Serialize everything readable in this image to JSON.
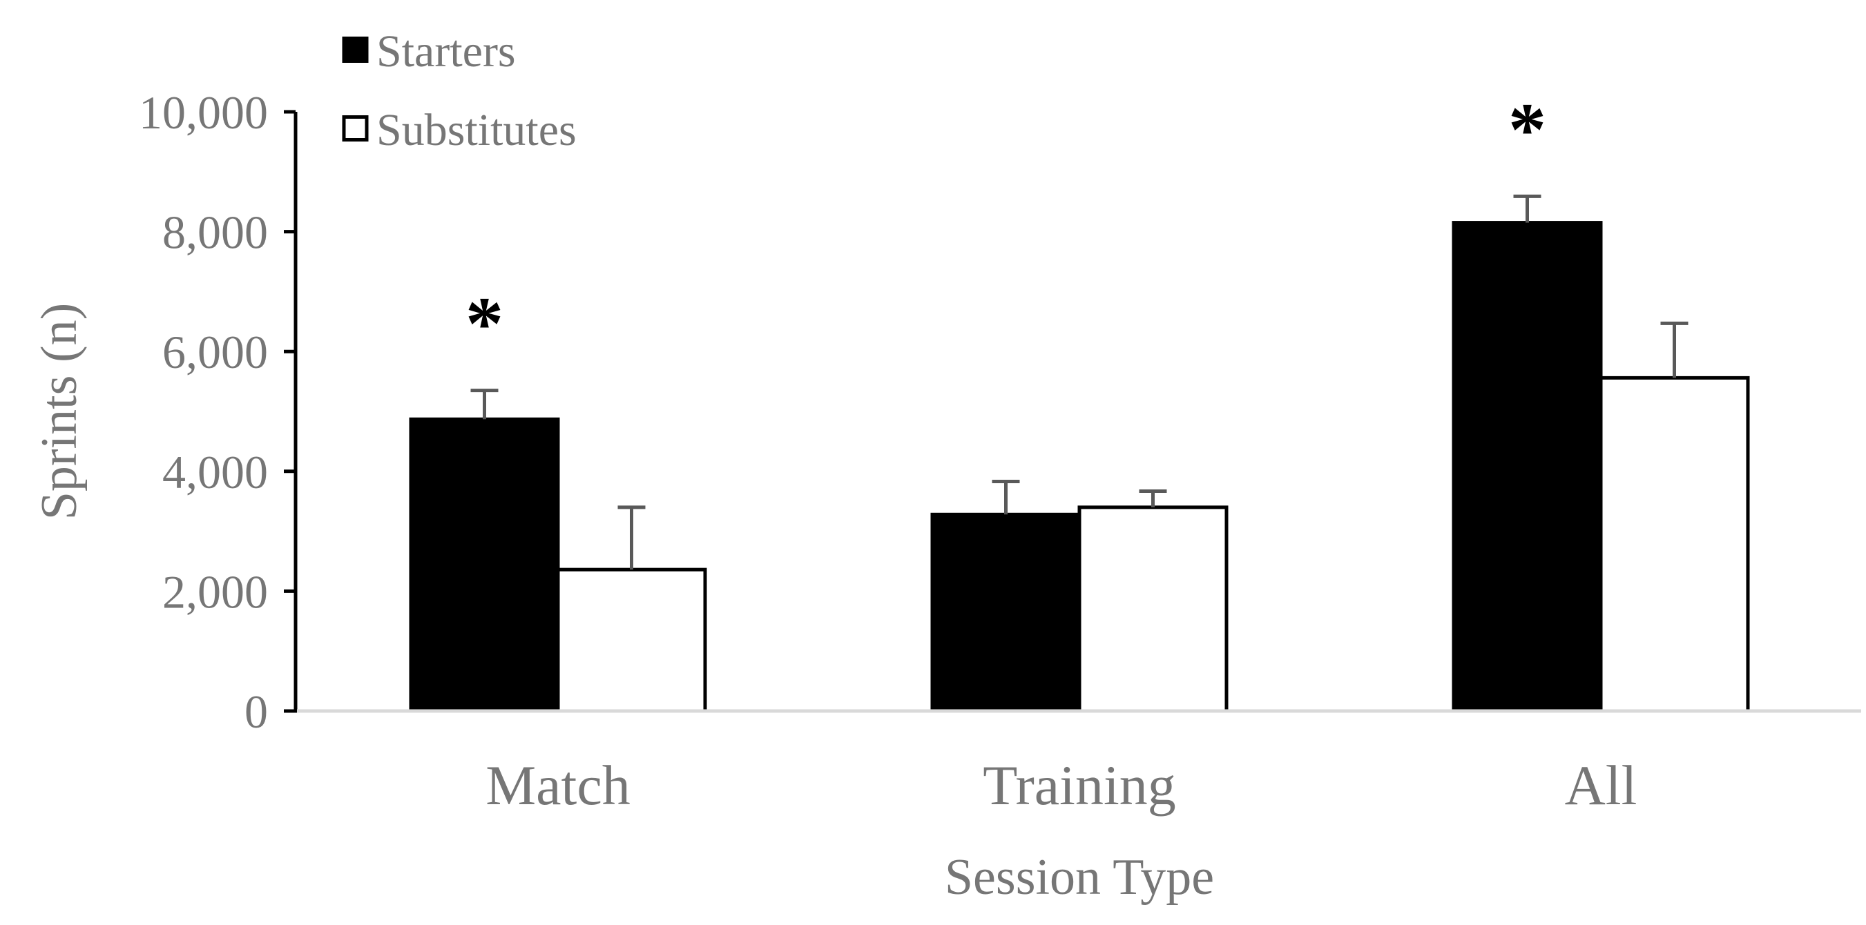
{
  "chart_data": {
    "type": "bar",
    "title": "",
    "xlabel": "Session Type",
    "ylabel": "Sprints (n)",
    "ylim": [
      0,
      10000
    ],
    "yticks": [
      0,
      2000,
      4000,
      6000,
      8000,
      10000
    ],
    "ytick_labels": [
      "0",
      "2,000",
      "4,000",
      "6,000",
      "8,000",
      "10,000"
    ],
    "categories": [
      "Match",
      "Training",
      "All"
    ],
    "series": [
      {
        "name": "Starters",
        "values": [
          4870,
          3280,
          8150
        ],
        "errors": [
          480,
          550,
          440
        ],
        "fill": "#000000"
      },
      {
        "name": "Substitutes",
        "values": [
          2360,
          3400,
          5560
        ],
        "errors": [
          1040,
          270,
          910
        ],
        "fill": "#ffffff"
      }
    ],
    "annotations": [
      {
        "text": "*",
        "category": "Match",
        "series": "Starters"
      },
      {
        "text": "*",
        "category": "All",
        "series": "Starters"
      }
    ],
    "legend": {
      "placement": "top-left"
    },
    "grid": false,
    "colors": {
      "text": "#767676",
      "axis_line": "#d9d9d9",
      "bar_stroke": "#000000",
      "error_bar": "#595959",
      "ticks": "#000000"
    }
  }
}
